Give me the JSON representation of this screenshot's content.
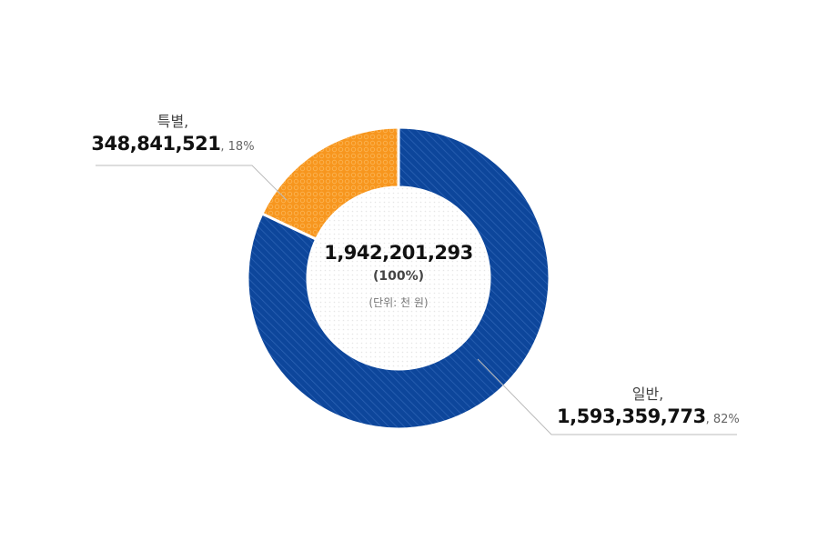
{
  "chart_data": {
    "type": "pie",
    "donut": true,
    "total": {
      "value": "1,942,201,293",
      "percent": "(100%)",
      "unit": "(단위: 천 원)"
    },
    "slices": [
      {
        "name": "일반,",
        "value": 1593359773,
        "value_label": "1,593,359,773",
        "percent_label": ", 82%",
        "color": "#0d469b"
      },
      {
        "name": "특별,",
        "value": 348841521,
        "value_label": "348,841,521",
        "percent_label": ", 18%",
        "color": "#f7961e"
      }
    ]
  }
}
